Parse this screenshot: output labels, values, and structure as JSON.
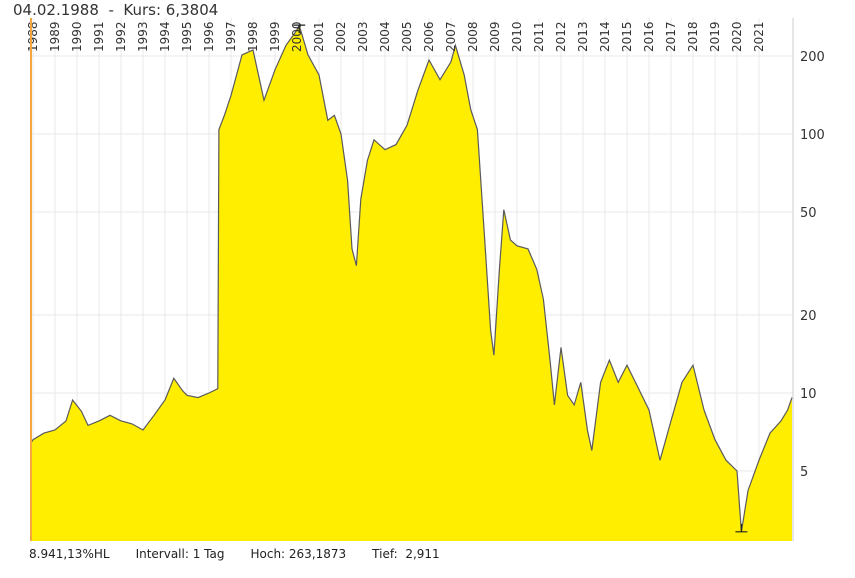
{
  "header": {
    "date": "04.02.1988",
    "separator": "-",
    "price_label": "Kurs: 6,3804"
  },
  "footer": {
    "range": "8.941,13%HL",
    "interval": "Intervall: 1 Tag",
    "high": "Hoch: 263,1873",
    "low": "Tief:  2,911"
  },
  "colors": {
    "fill": "#ffee00",
    "line": "#5a5a5a",
    "grid": "#e8e8e8",
    "cursor": "#f4a640"
  },
  "chart_data": {
    "type": "area",
    "yscale": "log",
    "ylim": [
      2.68,
      280
    ],
    "xlim": [
      1988,
      2022.6
    ],
    "grid": true,
    "y_ticks": [
      5,
      10,
      20,
      50,
      100,
      200
    ],
    "x_tick_labels": [
      "1988",
      "1989",
      "1990",
      "1991",
      "1992",
      "1993",
      "1994",
      "1995",
      "1996",
      "1997",
      "1998",
      "1999",
      "2000",
      "2001",
      "2002",
      "2003",
      "2004",
      "2005",
      "2006",
      "2007",
      "2008",
      "2009",
      "2010",
      "2011",
      "2012",
      "2013",
      "2014",
      "2015",
      "2016",
      "2017",
      "2018",
      "2019",
      "2020",
      "2021"
    ],
    "high": 263.1873,
    "low": 2.911,
    "points": [
      [
        1987.9,
        6.4
      ],
      [
        1988.0,
        6.6
      ],
      [
        1988.5,
        7.0
      ],
      [
        1989.0,
        7.2
      ],
      [
        1989.5,
        7.8
      ],
      [
        1989.8,
        9.4
      ],
      [
        1990.2,
        8.5
      ],
      [
        1990.5,
        7.5
      ],
      [
        1991.0,
        7.8
      ],
      [
        1991.5,
        8.2
      ],
      [
        1992.0,
        7.8
      ],
      [
        1992.5,
        7.6
      ],
      [
        1993.0,
        7.2
      ],
      [
        1993.5,
        8.2
      ],
      [
        1994.0,
        9.4
      ],
      [
        1994.4,
        11.4
      ],
      [
        1994.8,
        10.2
      ],
      [
        1995.0,
        9.8
      ],
      [
        1995.5,
        9.6
      ],
      [
        1996.0,
        10.0
      ],
      [
        1996.4,
        10.4
      ],
      [
        1996.45,
        104
      ],
      [
        1996.7,
        118
      ],
      [
        1997.0,
        141
      ],
      [
        1997.5,
        202
      ],
      [
        1998.0,
        211
      ],
      [
        1998.5,
        135
      ],
      [
        1999.0,
        177
      ],
      [
        1999.5,
        220
      ],
      [
        2000.0,
        252
      ],
      [
        2000.1,
        263
      ],
      [
        2000.5,
        202
      ],
      [
        2001.0,
        169
      ],
      [
        2001.4,
        113
      ],
      [
        2001.7,
        118
      ],
      [
        2002.0,
        100
      ],
      [
        2002.3,
        66
      ],
      [
        2002.5,
        36
      ],
      [
        2002.7,
        31
      ],
      [
        2002.9,
        56
      ],
      [
        2003.2,
        79
      ],
      [
        2003.5,
        95
      ],
      [
        2004.0,
        87
      ],
      [
        2004.5,
        91
      ],
      [
        2005.0,
        108
      ],
      [
        2005.5,
        148
      ],
      [
        2006.0,
        193
      ],
      [
        2006.5,
        162
      ],
      [
        2007.0,
        190
      ],
      [
        2007.2,
        220
      ],
      [
        2007.6,
        169
      ],
      [
        2007.9,
        124
      ],
      [
        2008.2,
        104
      ],
      [
        2008.5,
        43
      ],
      [
        2008.8,
        17.5
      ],
      [
        2008.95,
        14
      ],
      [
        2009.2,
        30
      ],
      [
        2009.4,
        51
      ],
      [
        2009.7,
        39
      ],
      [
        2010.0,
        37
      ],
      [
        2010.5,
        36
      ],
      [
        2010.9,
        30
      ],
      [
        2011.2,
        23
      ],
      [
        2011.5,
        13.4
      ],
      [
        2011.7,
        9
      ],
      [
        2012.0,
        15
      ],
      [
        2012.3,
        9.8
      ],
      [
        2012.6,
        9
      ],
      [
        2012.9,
        11
      ],
      [
        2013.2,
        7.2
      ],
      [
        2013.4,
        6
      ],
      [
        2013.8,
        11
      ],
      [
        2014.2,
        13.4
      ],
      [
        2014.6,
        11
      ],
      [
        2015.0,
        12.8
      ],
      [
        2015.5,
        10.5
      ],
      [
        2016.0,
        8.6
      ],
      [
        2016.5,
        5.5
      ],
      [
        2017.0,
        7.8
      ],
      [
        2017.5,
        11
      ],
      [
        2018.0,
        12.8
      ],
      [
        2018.5,
        8.6
      ],
      [
        2019.0,
        6.6
      ],
      [
        2019.5,
        5.5
      ],
      [
        2020.0,
        5.0
      ],
      [
        2020.2,
        2.911
      ],
      [
        2020.5,
        4.2
      ],
      [
        2021.0,
        5.5
      ],
      [
        2021.5,
        7.0
      ],
      [
        2022.0,
        7.8
      ],
      [
        2022.3,
        8.6
      ],
      [
        2022.5,
        9.6
      ]
    ]
  }
}
